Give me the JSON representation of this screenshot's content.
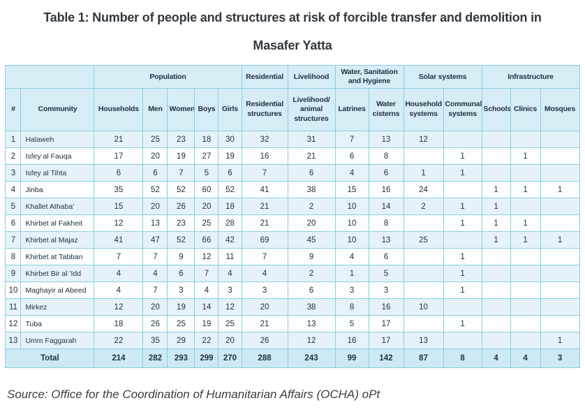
{
  "colors": {
    "border-color": "#89cede",
    "header-bg": "#d6edf5",
    "row-odd": "#e6f2f9",
    "row-even": "#fbfdfe",
    "total-bg": "#cde9f3",
    "table-text": "#223240",
    "title-text": "#32383d"
  },
  "chart_data": {
    "type": "table",
    "title": "Table 1: Number of people and structures at risk of forcible transfer and demolition in Masafer Yatta",
    "source": "Source: Office for the Coordination of Humanitarian Affairs (OCHA) oPt",
    "column_groups": [
      {
        "label": "",
        "colspan": 2
      },
      {
        "label": "Population",
        "colspan": 5
      },
      {
        "label": "Residential",
        "colspan": 1
      },
      {
        "label": "Livelihood",
        "colspan": 1
      },
      {
        "label": "Water, Sanitation and Hygiene",
        "colspan": 2
      },
      {
        "label": "Solar systems",
        "colspan": 2
      },
      {
        "label": "Infrastructure",
        "colspan": 3
      }
    ],
    "columns": [
      "#",
      "Community",
      "Households",
      "Men",
      "Women",
      "Boys",
      "Girls",
      "Residential structures",
      "Livelihood/ animal structures",
      "Latrines",
      "Water cisterns",
      "Household systems",
      "Communal systems",
      "Schools",
      "Clinics",
      "Mosques"
    ],
    "rows": [
      [
        1,
        "Halaweh",
        21,
        25,
        23,
        18,
        30,
        32,
        31,
        7,
        13,
        12,
        "",
        "",
        "",
        ""
      ],
      [
        2,
        "Isfey al Fauqa",
        17,
        20,
        19,
        27,
        19,
        16,
        21,
        6,
        8,
        "",
        1,
        "",
        1,
        ""
      ],
      [
        3,
        "Isfey al Tihta",
        6,
        6,
        7,
        5,
        6,
        7,
        6,
        4,
        6,
        1,
        1,
        "",
        "",
        ""
      ],
      [
        4,
        "Jinba",
        35,
        52,
        52,
        60,
        52,
        41,
        38,
        15,
        16,
        24,
        "",
        1,
        1,
        1
      ],
      [
        5,
        "Khallet Athaba'",
        15,
        20,
        26,
        20,
        18,
        21,
        2,
        10,
        14,
        2,
        1,
        1,
        "",
        ""
      ],
      [
        6,
        "Khirbet al Fakheit",
        12,
        13,
        23,
        25,
        28,
        21,
        20,
        10,
        8,
        "",
        1,
        1,
        1,
        ""
      ],
      [
        7,
        "Khirbet al Majaz",
        41,
        47,
        52,
        66,
        42,
        69,
        45,
        10,
        13,
        25,
        "",
        1,
        1,
        1
      ],
      [
        8,
        "Khirbet at Tabban",
        7,
        7,
        9,
        12,
        11,
        7,
        9,
        4,
        6,
        "",
        1,
        "",
        "",
        ""
      ],
      [
        9,
        "Khirbet Bir al 'Idd",
        4,
        4,
        6,
        7,
        4,
        4,
        2,
        1,
        5,
        "",
        1,
        "",
        "",
        ""
      ],
      [
        10,
        "Maghayir al Abeed",
        4,
        7,
        3,
        4,
        3,
        3,
        6,
        3,
        3,
        "",
        1,
        "",
        "",
        ""
      ],
      [
        11,
        "Mirkez",
        12,
        20,
        19,
        14,
        12,
        20,
        38,
        8,
        16,
        10,
        "",
        "",
        "",
        ""
      ],
      [
        12,
        "Tuba",
        18,
        26,
        25,
        19,
        25,
        21,
        13,
        5,
        17,
        "",
        1,
        "",
        "",
        ""
      ],
      [
        13,
        "Umm Faggarah",
        22,
        35,
        29,
        22,
        20,
        26,
        12,
        16,
        17,
        13,
        "",
        "",
        "",
        1
      ]
    ],
    "total_row": {
      "label": "Total",
      "values": [
        214,
        282,
        293,
        299,
        270,
        288,
        243,
        99,
        142,
        87,
        8,
        4,
        4,
        3
      ]
    }
  }
}
